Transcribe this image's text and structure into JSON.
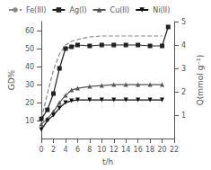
{
  "chart_data": {
    "type": "line",
    "xlabel": "t/h",
    "ylabel": "GD%",
    "y2label": "Q(mmol g⁻¹)",
    "xlim": [
      0,
      22
    ],
    "ylim": [
      0,
      65
    ],
    "y2lim": [
      0,
      5
    ],
    "xticks": [
      0,
      2,
      4,
      6,
      8,
      10,
      12,
      14,
      16,
      18,
      20,
      22
    ],
    "yticks": [
      10,
      20,
      30,
      40,
      50,
      60
    ],
    "y2ticks": [
      1,
      2,
      3,
      4,
      5
    ],
    "grid": false,
    "legend": "upper left",
    "series": [
      {
        "name": "Fe(III)",
        "color": "#888888",
        "line_style": "dashed",
        "marker": "none",
        "x": [
          0,
          1,
          2,
          3,
          4,
          5,
          6,
          8,
          10,
          12,
          14,
          16,
          18,
          20
        ],
        "values": [
          11,
          25,
          38,
          47,
          52,
          54,
          55,
          56.5,
          57,
          57,
          57,
          57,
          57,
          57
        ]
      },
      {
        "name": "Ag(I)",
        "color": "#222222",
        "line_style": "solid",
        "marker": "square",
        "x": [
          0,
          1,
          2,
          3,
          4,
          5,
          6,
          8,
          10,
          12,
          14,
          16,
          18,
          20,
          21
        ],
        "values": [
          11,
          16,
          25,
          39,
          50,
          51,
          52,
          51.5,
          52,
          52,
          52,
          52,
          51.5,
          51.5,
          62
        ]
      },
      {
        "name": "Cu(II)",
        "color": "#555555",
        "line_style": "solid",
        "marker": "triangle_up",
        "x": [
          0,
          1,
          2,
          3,
          4,
          5,
          6,
          8,
          10,
          12,
          14,
          16,
          18,
          20
        ],
        "values": [
          8,
          11,
          15,
          20,
          24,
          27,
          28,
          29,
          29.5,
          30,
          30,
          30,
          30,
          30
        ]
      },
      {
        "name": "Ni(II)",
        "color": "#111111",
        "line_style": "solid",
        "marker": "triangle_down",
        "x": [
          0,
          1,
          2,
          3,
          4,
          5,
          6,
          8,
          10,
          12,
          14,
          16,
          18,
          20
        ],
        "values": [
          5,
          10,
          13,
          17,
          20,
          21,
          21.5,
          21.5,
          21.5,
          21.5,
          21.5,
          21.5,
          21.5,
          21.5
        ]
      }
    ]
  }
}
